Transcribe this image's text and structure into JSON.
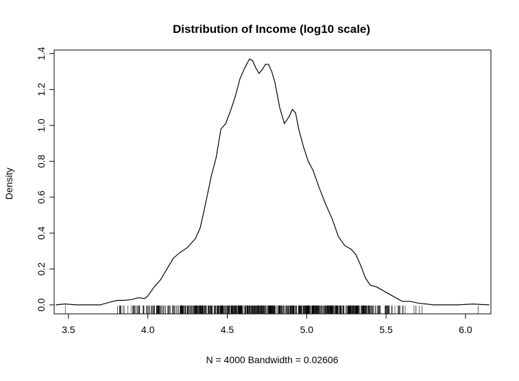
{
  "chart_data": {
    "type": "line",
    "title": "Distribution of Income (log10 scale)",
    "xlabel": "N = 4000   Bandwidth = 0.02606",
    "ylabel": "Density",
    "xlim": [
      3.41,
      6.16
    ],
    "ylim": [
      -0.05,
      1.42
    ],
    "xticks": [
      3.5,
      4.0,
      4.5,
      5.0,
      5.5,
      6.0
    ],
    "xtick_labels": [
      "3.5",
      "4.0",
      "4.5",
      "5.0",
      "5.5",
      "6.0"
    ],
    "yticks": [
      0.0,
      0.2,
      0.4,
      0.6,
      0.8,
      1.0,
      1.2,
      1.4
    ],
    "ytick_labels": [
      "0.0",
      "0.2",
      "0.4",
      "0.6",
      "0.8",
      "1.0",
      "1.2",
      "1.4"
    ],
    "grid": false,
    "series": [
      {
        "x": [
          3.42,
          3.48,
          3.55,
          3.7,
          3.78,
          3.81,
          3.85,
          3.9,
          3.94,
          3.98,
          4.0,
          4.04,
          4.08,
          4.12,
          4.16,
          4.2,
          4.25,
          4.3,
          4.33,
          4.36,
          4.4,
          4.43,
          4.46,
          4.49,
          4.52,
          4.55,
          4.58,
          4.61,
          4.64,
          4.66,
          4.68,
          4.7,
          4.72,
          4.74,
          4.76,
          4.78,
          4.8,
          4.83,
          4.86,
          4.89,
          4.91,
          4.93,
          4.95,
          4.98,
          5.01,
          5.04,
          5.08,
          5.12,
          5.16,
          5.2,
          5.24,
          5.28,
          5.31,
          5.34,
          5.37,
          5.4,
          5.44,
          5.48,
          5.52,
          5.56,
          5.6,
          5.65,
          5.7,
          5.8,
          5.95,
          6.05,
          6.1,
          6.15
        ],
        "y": [
          0.0,
          0.005,
          0.0,
          0.0,
          0.02,
          0.025,
          0.025,
          0.03,
          0.04,
          0.035,
          0.05,
          0.1,
          0.14,
          0.2,
          0.26,
          0.29,
          0.32,
          0.37,
          0.43,
          0.55,
          0.72,
          0.82,
          0.98,
          1.01,
          1.08,
          1.16,
          1.26,
          1.32,
          1.37,
          1.36,
          1.32,
          1.29,
          1.31,
          1.34,
          1.34,
          1.3,
          1.24,
          1.1,
          1.01,
          1.05,
          1.09,
          1.07,
          0.98,
          0.88,
          0.8,
          0.75,
          0.65,
          0.56,
          0.48,
          0.38,
          0.33,
          0.31,
          0.28,
          0.22,
          0.15,
          0.11,
          0.1,
          0.08,
          0.06,
          0.04,
          0.02,
          0.02,
          0.01,
          0.0,
          0.0,
          0.005,
          0.002,
          0.0
        ]
      }
    ],
    "rug_ranges": [
      [
        3.79,
        3.97,
        22
      ],
      [
        3.97,
        4.2,
        55
      ],
      [
        4.2,
        5.4,
        640
      ],
      [
        5.4,
        5.6,
        40
      ],
      [
        5.6,
        5.75,
        8
      ]
    ],
    "rug_singles": [
      3.48,
      6.08
    ]
  }
}
